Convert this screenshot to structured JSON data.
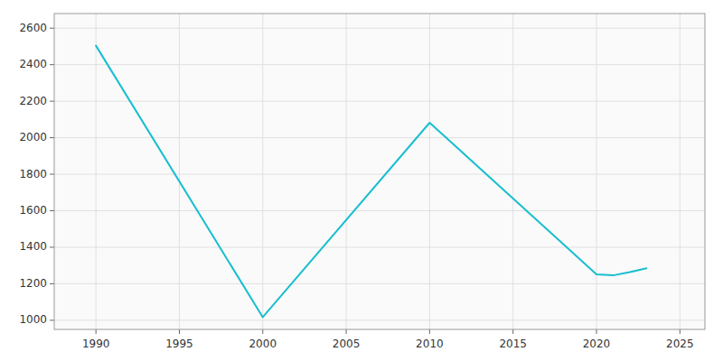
{
  "chart_data": {
    "type": "line",
    "x": [
      1990,
      2000,
      2010,
      2020,
      2021,
      2022,
      2023
    ],
    "values": [
      2504,
      1017,
      2082,
      1252,
      1246,
      1264,
      1285
    ],
    "color": "#17becf",
    "xlim": [
      1987.5,
      2026.5
    ],
    "ylim": [
      950,
      2680
    ],
    "xticks": [
      1990,
      1995,
      2000,
      2005,
      2010,
      2015,
      2020,
      2025
    ],
    "yticks": [
      1000,
      1200,
      1400,
      1600,
      1800,
      2000,
      2200,
      2400,
      2600
    ],
    "grid": true
  }
}
